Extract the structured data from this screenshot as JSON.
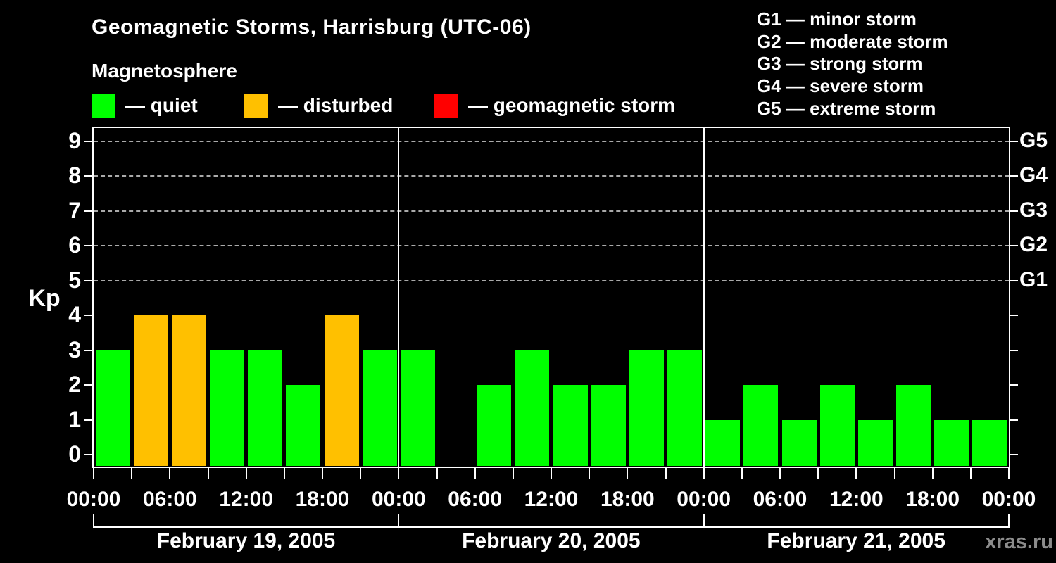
{
  "title": "Geomagnetic Storms, Harrisburg (UTC-06)",
  "subtitle": "Magnetosphere",
  "status_legend": [
    {
      "key": "quiet",
      "label": "— quiet",
      "color": "#00ff00"
    },
    {
      "key": "disturbed",
      "label": "— disturbed",
      "color": "#ffc000"
    },
    {
      "key": "geomagnetic-storm",
      "label": "— geomagnetic storm",
      "color": "#ff0000"
    }
  ],
  "g_scale_legend": [
    {
      "label": "G1 — minor storm"
    },
    {
      "label": "G2 — moderate storm"
    },
    {
      "label": "G3 — strong storm"
    },
    {
      "label": "G4 — severe storm"
    },
    {
      "label": "G5 — extreme storm"
    }
  ],
  "watermark": "xras.ru",
  "chart_data": {
    "type": "bar",
    "ylabel": "Kp",
    "y_ticks": [
      0,
      1,
      2,
      3,
      4,
      5,
      6,
      7,
      8,
      9
    ],
    "ylim": [
      -0.35,
      9.4
    ],
    "grid_levels": [
      5,
      6,
      7,
      8,
      9
    ],
    "grid_on": true,
    "right_axis_labels": [
      {
        "value": 5,
        "label": "G1"
      },
      {
        "value": 6,
        "label": "G2"
      },
      {
        "value": 7,
        "label": "G3"
      },
      {
        "value": 8,
        "label": "G4"
      },
      {
        "value": 9,
        "label": "G5"
      }
    ],
    "hours_per_bar": 3,
    "x_tick_interval_hours": 3,
    "x_label_interval_hours": 6,
    "x_label_cycle": [
      "00:00",
      "06:00",
      "12:00",
      "18:00"
    ],
    "colors": {
      "quiet": "#00ff00",
      "disturbed": "#ffc000",
      "storm": "#ff0000"
    },
    "color_thresholds": {
      "quiet_max_kp": 3,
      "disturbed_max_kp": 5
    },
    "days": [
      {
        "date": "February 19, 2005",
        "kp": [
          3,
          4,
          4,
          3,
          3,
          2,
          4,
          3
        ]
      },
      {
        "date": "February 20, 2005",
        "kp": [
          3,
          null,
          2,
          3,
          2,
          2,
          3,
          3
        ]
      },
      {
        "date": "February 21, 2005",
        "kp": [
          1,
          2,
          1,
          2,
          1,
          2,
          1,
          1
        ]
      }
    ]
  }
}
